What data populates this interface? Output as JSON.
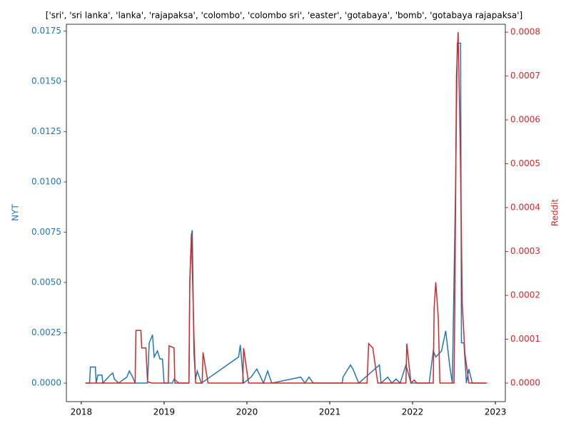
{
  "chart_data": {
    "type": "line",
    "title": "['sri', 'sri lanka', 'lanka', 'rajapaksa', 'colombo', 'colombo sri', 'easter', 'gotabaya', 'bomb', 'gotabaya rajapaksa']",
    "ylabel": "NYT",
    "y2label": "Reddit",
    "xlim": [
      2017.82,
      2023.12
    ],
    "xticks": [
      2018,
      2019,
      2020,
      2021,
      2022,
      2023
    ],
    "ylim": [
      -0.00092,
      0.01784
    ],
    "yticks": [
      {
        "value": 0,
        "label": "0.0000"
      },
      0.0025,
      {
        "value": 0.005,
        "label": "0.0050"
      },
      0.0075,
      {
        "value": 0.01,
        "label": "0.0100"
      },
      0.0125,
      {
        "value": 0.015,
        "label": "0.0150"
      },
      0.0175
    ],
    "y2lim": [
      -4.23e-05,
      0.000818
    ],
    "y2ticks": [
      {
        "value": 0,
        "label": "0.0000"
      },
      0.0001,
      0.0002,
      0.0003,
      0.0004,
      0.0005,
      0.0006,
      0.0007,
      0.0008
    ],
    "y_color": "#1f77b4",
    "y2_color": "#d62728",
    "series": [
      {
        "name": "NYT",
        "color": "#1f77b4",
        "axis": "y",
        "x": [
          2018.05,
          2018.1,
          2018.11,
          2018.17,
          2018.18,
          2018.2,
          2018.25,
          2018.26,
          2018.35,
          2018.38,
          2018.4,
          2018.45,
          2018.55,
          2018.58,
          2018.62,
          2018.65,
          2018.8,
          2018.82,
          2018.86,
          2018.88,
          2018.92,
          2018.95,
          2018.98,
          2019.0,
          2019.1,
          2019.12,
          2019.18,
          2019.3,
          2019.31,
          2019.33,
          2019.34,
          2019.36,
          2019.38,
          2019.4,
          2019.45,
          2019.9,
          2019.92,
          2019.96,
          2020.05,
          2020.12,
          2020.2,
          2020.25,
          2020.3,
          2020.65,
          2020.7,
          2020.75,
          2020.8,
          2021.15,
          2021.16,
          2021.25,
          2021.28,
          2021.35,
          2021.6,
          2021.62,
          2021.7,
          2021.75,
          2021.8,
          2021.85,
          2021.92,
          2021.98,
          2022.2,
          2022.25,
          2022.28,
          2022.35,
          2022.4,
          2022.45,
          2022.48,
          2022.52,
          2022.54,
          2022.58,
          2022.59,
          2022.62,
          2022.65,
          2022.68,
          2022.72,
          2022.85,
          2022.88
        ],
        "values": [
          0,
          0,
          0.0008,
          0.0008,
          0,
          0.0004,
          0.0004,
          0,
          0.0004,
          0.0005,
          0.0002,
          0,
          0.0003,
          0.0006,
          0.0003,
          0,
          0,
          0.002,
          0.0024,
          0.0013,
          0.0016,
          0.0012,
          0.0012,
          0,
          0,
          0.0002,
          0,
          0,
          0.005,
          0.0074,
          0.0076,
          0.0015,
          0.0002,
          0.0006,
          0,
          0.0013,
          0.0019,
          0,
          0.0003,
          0.0007,
          0,
          0.0006,
          0,
          0.0003,
          0,
          0.0003,
          0,
          0,
          0.0003,
          0.0009,
          0.0007,
          0,
          0.0009,
          0,
          0.0003,
          0,
          0.0002,
          0,
          0.0009,
          0,
          0,
          0.0016,
          0.0013,
          0.0016,
          0.0026,
          0.0008,
          0,
          0.01,
          0.0169,
          0.0169,
          0.002,
          0.002,
          0,
          0.0007,
          0,
          0,
          0
        ]
      },
      {
        "name": "Reddit",
        "color": "#d62728",
        "axis": "y2",
        "x": [
          2018.05,
          2018.65,
          2018.66,
          2018.72,
          2018.73,
          2018.78,
          2018.8,
          2018.85,
          2019.05,
          2019.06,
          2019.12,
          2019.13,
          2019.3,
          2019.31,
          2019.33,
          2019.36,
          2019.38,
          2019.46,
          2019.47,
          2019.53,
          2019.95,
          2019.96,
          2020.02,
          2021.45,
          2021.47,
          2021.52,
          2021.58,
          2021.92,
          2021.93,
          2021.98,
          2022.02,
          2022.05,
          2022.25,
          2022.26,
          2022.28,
          2022.31,
          2022.33,
          2022.5,
          2022.51,
          2022.53,
          2022.55,
          2022.57,
          2022.58,
          2022.6,
          2022.62,
          2022.63,
          2022.68,
          2022.85,
          2022.9
        ],
        "values": [
          0,
          0,
          0.00012,
          0.00012,
          8e-05,
          8e-05,
          3e-06,
          0,
          0,
          8.5e-05,
          8e-05,
          0,
          0,
          0.00023,
          0.00034,
          0.00011,
          0,
          0,
          7e-05,
          0,
          0,
          8e-05,
          0,
          0,
          9e-05,
          8e-05,
          0,
          0,
          9e-05,
          0,
          7e-06,
          0,
          0,
          0.00017,
          0.00023,
          0.00015,
          0,
          0,
          0.00017,
          0.0007,
          0.0008,
          0.0006,
          0.00048,
          0.00018,
          0.00011,
          7e-05,
          0,
          0,
          0
        ]
      }
    ]
  }
}
